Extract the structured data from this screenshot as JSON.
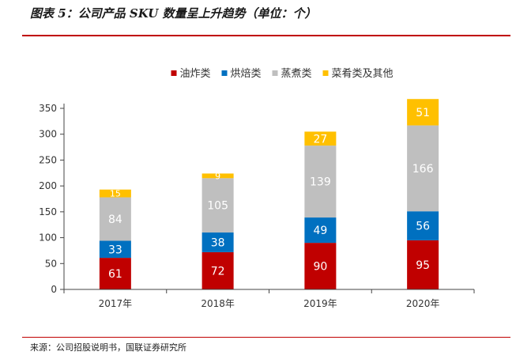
{
  "title": "图表 5：公司产品 SKU 数量呈上升趋势（单位：个）",
  "source": "来源：公司招股说明书，国联证券研究所",
  "chart_data": {
    "type": "bar",
    "stacked": true,
    "categories": [
      "2017年",
      "2018年",
      "2019年",
      "2020年"
    ],
    "series": [
      {
        "name": "油炸类",
        "color": "#c00000",
        "values": [
          61,
          72,
          90,
          95
        ]
      },
      {
        "name": "烘焙类",
        "color": "#0070c0",
        "values": [
          33,
          38,
          49,
          56
        ]
      },
      {
        "name": "蒸煮类",
        "color": "#bfbfbf",
        "values": [
          84,
          105,
          139,
          166
        ]
      },
      {
        "name": "菜肴类及其他",
        "color": "#ffc000",
        "values": [
          15,
          9,
          27,
          51
        ]
      }
    ],
    "yticks": [
      0,
      50,
      100,
      150,
      200,
      250,
      300,
      350
    ],
    "ylim": [
      0,
      350
    ],
    "legend_position": "top",
    "grid": false
  }
}
